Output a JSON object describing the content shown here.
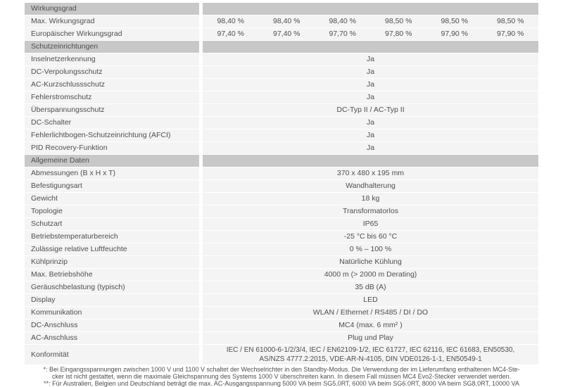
{
  "colors": {
    "section_bar": "#c8c8c8",
    "row_background": "#f4f4f4",
    "text": "#4e4e50",
    "page_background": "#ffffff"
  },
  "table": {
    "rows": [
      {
        "type": "section",
        "label": "Wirkungsgrad"
      },
      {
        "type": "multi",
        "label": "Max. Wirkungsgrad",
        "values": [
          "98,40 %",
          "98,40 %",
          "98,40 %",
          "98,50 %",
          "98,50 %",
          "98,50 %"
        ]
      },
      {
        "type": "multi",
        "label": "Europäischer Wirkungsgrad",
        "values": [
          "97,40 %",
          "97,40 %",
          "97,70 %",
          "97,80 %",
          "97,90 %",
          "97,90 %"
        ]
      },
      {
        "type": "section",
        "label": "Schutzeinrichtungen"
      },
      {
        "type": "single",
        "label": "Inselnetzerkennung",
        "value": "Ja"
      },
      {
        "type": "single",
        "label": "DC-Verpolungsschutz",
        "value": "Ja"
      },
      {
        "type": "single",
        "label": "AC-Kurzschlussschutz",
        "value": "Ja"
      },
      {
        "type": "single",
        "label": "Fehlerstromschutz",
        "value": "Ja"
      },
      {
        "type": "single",
        "label": "Überspannungsschutz",
        "value": "DC-Typ II / AC-Typ II"
      },
      {
        "type": "single",
        "label": "DC-Schalter",
        "value": "Ja"
      },
      {
        "type": "single",
        "label": "Fehlerlichtbogen-Schutzeinrichtung (AFCI)",
        "value": "Ja"
      },
      {
        "type": "single",
        "label": "PID Recovery-Funktion",
        "value": "Ja"
      },
      {
        "type": "section",
        "label": "Allgemeine Daten"
      },
      {
        "type": "single",
        "label": "Abmessungen (B x H x T)",
        "value": "370 x 480 x 195 mm"
      },
      {
        "type": "single",
        "label": "Befestigungsart",
        "value": "Wandhalterung"
      },
      {
        "type": "single",
        "label": "Gewicht",
        "value": "18 kg"
      },
      {
        "type": "single",
        "label": "Topologie",
        "value": "Transformatorlos"
      },
      {
        "type": "single",
        "label": "Schutzart",
        "value": "IP65"
      },
      {
        "type": "single",
        "label": "Betriebstemperaturbereich",
        "value": "-25 °C bis 60 °C"
      },
      {
        "type": "single",
        "label": "Zulässige relative Luftfeuchte",
        "value": "0 % – 100 %"
      },
      {
        "type": "single",
        "label": "Kühlprinzip",
        "value": "Natürliche Kühlung"
      },
      {
        "type": "single",
        "label": "Max. Betriebshöhe",
        "value": "4000 m (> 2000 m Derating)"
      },
      {
        "type": "single",
        "label": "Geräuschbelastung (typisch)",
        "value": "35 dB (A)"
      },
      {
        "type": "single",
        "label": "Display",
        "value": "LED"
      },
      {
        "type": "single",
        "label": "Kommunikation",
        "value": "WLAN / Ethernet / RS485 / DI / DO"
      },
      {
        "type": "single",
        "label": "DC-Anschluss",
        "value": "MC4 (max. 6 mm² )"
      },
      {
        "type": "single",
        "label": "AC-Anschluss",
        "value": "Plug und Play"
      },
      {
        "type": "konformitaet",
        "label": "Konformität",
        "value_lines": [
          "IEC / EN 61000-6-1/2/3/4, IEC / EN62109-1/2, IEC 61727, IEC 62116, IEC 61683, EN50530,",
          "AS/NZS 4777.2:2015, VDE-AR-N-4105, DIN VDE0126-1-1, EN50549-1"
        ]
      }
    ]
  },
  "footnotes": {
    "lines": [
      "*: Bei Eingangsspannungen zwischen 1000 V und 1100 V schaltet der Wechselrichter in den Standby-Modus. Die Verwendung der im Lieferumfang enthaltenen MC4-Ste-",
      "cker ist nicht gestattet, wenn die maximale Gleichspannung des Systems 1000 V überschreiten kann. In diesem Fall müssen MC4 Evo2-Stecker verwendet werden.",
      "**: Für Australien, Belgien und Deutschland beträgt die max. AC-Ausgangsspannung 5000 VA beim SG5.0RT, 6000 VA beim SG6.0RT, 8000 VA beim SG8.0RT, 10000 VA"
    ]
  }
}
